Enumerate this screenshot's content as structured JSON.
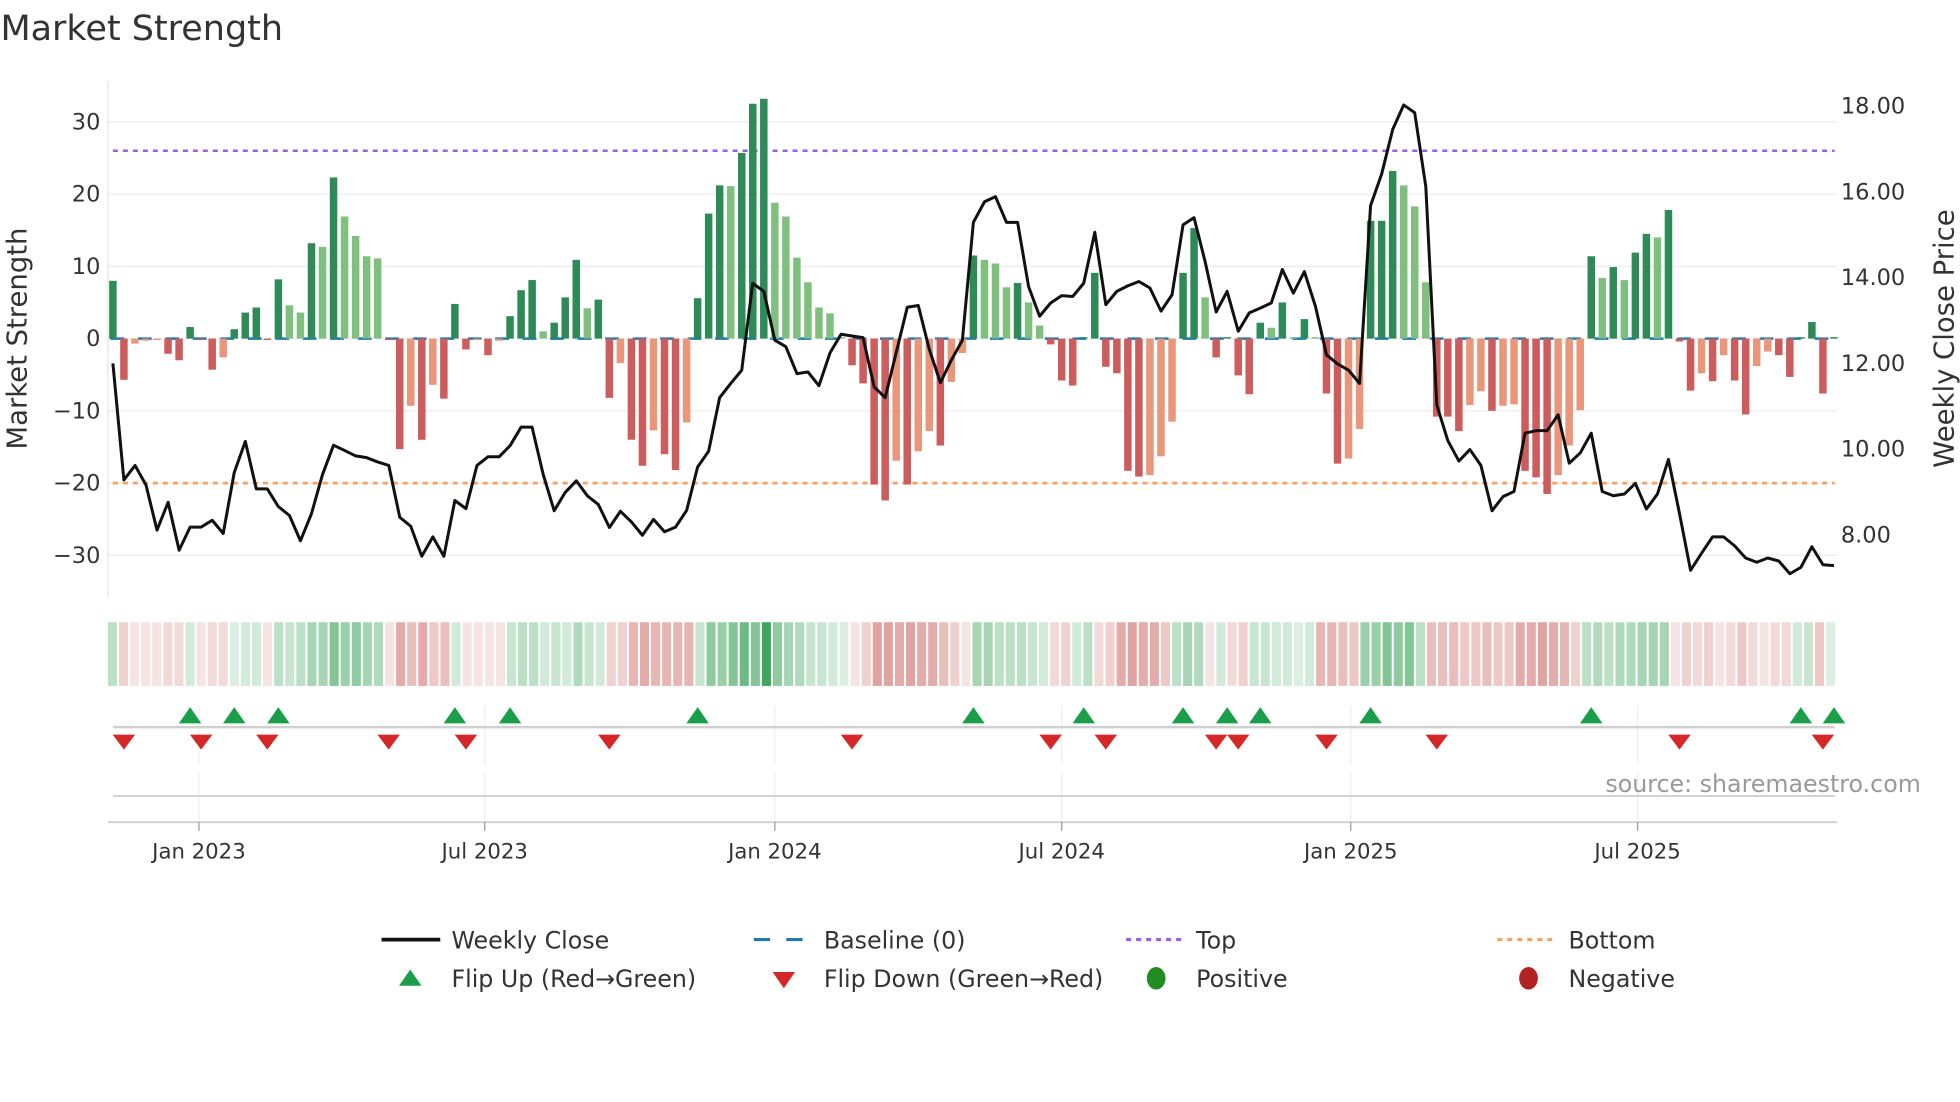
{
  "chart_data": {
    "type": "bar",
    "title": "Market Strength",
    "ylabel": "Market Strength",
    "y2label": "Weekly Close Price",
    "ylim": [
      -35,
      35
    ],
    "y2lim": [
      6.55,
      18.75
    ],
    "yticks": [
      -30,
      -20,
      -10,
      0,
      10,
      20,
      30
    ],
    "ytick_labels": [
      "−30",
      "−20",
      "−10",
      "0",
      "10",
      "20",
      "30"
    ],
    "y2ticks": [
      8,
      10,
      12,
      14,
      16,
      18
    ],
    "y2tick_labels": [
      "8.00",
      "10.00",
      "12.00",
      "14.00",
      "16.00",
      "18.00"
    ],
    "x_unit": "week index",
    "xticks": [
      {
        "week": 7.8,
        "label": "Jan 2023"
      },
      {
        "week": 33.7,
        "label": "Jul 2023"
      },
      {
        "week": 60.0,
        "label": "Jan 2024"
      },
      {
        "week": 86.0,
        "label": "Jul 2024"
      },
      {
        "week": 112.2,
        "label": "Jan 2025"
      },
      {
        "week": 138.2,
        "label": "Jul 2025"
      }
    ],
    "top_level": 26,
    "bottom_level": -20,
    "baseline": 0,
    "grid": true,
    "strength": [
      8.0,
      -5.7,
      -0.7,
      -0.3,
      -0.2,
      -2.1,
      -3.0,
      1.6,
      -0.2,
      -4.3,
      -2.6,
      1.3,
      3.6,
      4.3,
      -0.2,
      8.2,
      4.6,
      3.6,
      13.2,
      12.7,
      22.3,
      16.9,
      14.2,
      11.4,
      11.1,
      -0.2,
      -15.3,
      -9.3,
      -14.0,
      -6.4,
      -8.3,
      4.8,
      -1.5,
      -0.2,
      -2.3,
      -0.3,
      3.1,
      6.7,
      8.1,
      1.0,
      2.2,
      5.7,
      10.9,
      4.2,
      5.4,
      -8.2,
      -3.4,
      -14.0,
      -17.6,
      -12.7,
      -16.0,
      -18.2,
      -11.6,
      5.6,
      17.3,
      21.2,
      21.1,
      25.7,
      32.5,
      33.2,
      18.8,
      16.9,
      11.2,
      7.8,
      4.3,
      3.5,
      0.2,
      -3.7,
      -6.2,
      -20.2,
      -22.4,
      -16.9,
      -20.2,
      -15.6,
      -12.8,
      -14.8,
      -6.0,
      -2.0,
      11.5,
      10.9,
      10.4,
      7.1,
      7.7,
      5.0,
      1.8,
      -0.8,
      -5.8,
      -6.5,
      0.2,
      9.1,
      -3.9,
      -4.8,
      -18.3,
      -19.1,
      -18.9,
      -16.3,
      -11.5,
      9.1,
      15.3,
      5.7,
      -2.6,
      0.2,
      -5.1,
      -7.7,
      2.2,
      1.5,
      5.0,
      0.2,
      2.7,
      0.2,
      -7.6,
      -17.3,
      -16.6,
      -12.5,
      16.3,
      16.3,
      23.2,
      21.2,
      18.3,
      7.8,
      -10.8,
      -10.8,
      -12.8,
      -9.2,
      -7.3,
      -10.0,
      -9.3,
      -9.1,
      -18.3,
      -19.2,
      -21.5,
      -18.9,
      -14.8,
      -9.9,
      11.4,
      8.4,
      9.9,
      8.1,
      11.9,
      14.5,
      14.0,
      17.8,
      -0.4,
      -7.2,
      -4.8,
      -5.9,
      -2.3,
      -5.8,
      -10.5,
      -3.8,
      -1.8,
      -2.3,
      -5.3,
      0.2,
      2.3,
      -7.6,
      0.2
    ],
    "weekly_close": [
      11.97,
      9.25,
      9.59,
      9.13,
      8.08,
      8.73,
      7.61,
      8.15,
      8.15,
      8.31,
      8.0,
      9.42,
      10.15,
      9.04,
      9.04,
      8.63,
      8.42,
      7.83,
      8.46,
      9.38,
      10.06,
      9.94,
      9.81,
      9.77,
      9.67,
      9.59,
      8.38,
      8.17,
      7.47,
      7.92,
      7.47,
      8.77,
      8.58,
      9.59,
      9.79,
      9.79,
      10.05,
      10.48,
      10.48,
      9.38,
      8.53,
      8.96,
      9.23,
      8.88,
      8.68,
      8.14,
      8.52,
      8.27,
      7.96,
      8.33,
      8.04,
      8.15,
      8.54,
      9.55,
      9.92,
      11.17,
      11.5,
      11.81,
      13.84,
      13.65,
      12.51,
      12.36,
      11.73,
      11.77,
      11.45,
      12.22,
      12.65,
      12.61,
      12.57,
      11.42,
      11.17,
      12.22,
      13.28,
      13.32,
      12.3,
      11.52,
      12.05,
      12.51,
      15.26,
      15.74,
      15.86,
      15.26,
      15.26,
      13.76,
      13.07,
      13.38,
      13.55,
      13.53,
      13.84,
      15.03,
      13.34,
      13.65,
      13.78,
      13.88,
      13.73,
      13.19,
      13.57,
      15.2,
      15.37,
      14.34,
      13.17,
      13.65,
      12.72,
      13.15,
      13.26,
      13.38,
      14.16,
      13.61,
      14.11,
      13.3,
      12.17,
      11.96,
      11.81,
      11.5,
      15.65,
      16.39,
      17.43,
      18.0,
      17.82,
      16.1,
      11.0,
      10.17,
      9.69,
      9.96,
      9.59,
      8.53,
      8.86,
      8.98,
      10.34,
      10.4,
      10.4,
      10.77,
      9.64,
      9.88,
      10.34,
      8.98,
      8.88,
      8.92,
      9.17,
      8.57,
      8.92,
      9.73,
      8.46,
      7.14,
      7.54,
      7.92,
      7.92,
      7.71,
      7.43,
      7.33,
      7.43,
      7.36,
      7.06,
      7.21,
      7.69,
      7.27,
      7.25
    ],
    "heat_strip": [
      0.3,
      -0.25,
      -0.15,
      -0.15,
      -0.15,
      -0.2,
      -0.2,
      0.2,
      -0.15,
      -0.2,
      -0.2,
      0.15,
      0.2,
      0.2,
      -0.15,
      0.3,
      0.25,
      0.3,
      0.4,
      0.4,
      0.55,
      0.45,
      0.5,
      0.4,
      0.35,
      -0.15,
      -0.45,
      -0.35,
      -0.45,
      -0.3,
      -0.35,
      0.2,
      -0.15,
      -0.15,
      -0.15,
      -0.15,
      0.25,
      0.3,
      0.3,
      0.2,
      0.25,
      0.2,
      0.35,
      0.25,
      0.2,
      -0.25,
      -0.25,
      -0.4,
      -0.45,
      -0.4,
      -0.4,
      -0.4,
      -0.4,
      0.25,
      0.5,
      0.45,
      0.55,
      0.65,
      0.55,
      0.85,
      0.5,
      0.4,
      0.35,
      0.25,
      0.25,
      0.2,
      0.15,
      -0.15,
      -0.25,
      -0.5,
      -0.5,
      -0.45,
      -0.5,
      -0.45,
      -0.45,
      -0.35,
      -0.25,
      -0.15,
      0.4,
      0.4,
      0.3,
      0.3,
      0.3,
      0.25,
      0.2,
      -0.2,
      -0.25,
      0.2,
      0.3,
      -0.2,
      -0.25,
      -0.45,
      -0.5,
      -0.45,
      -0.45,
      -0.3,
      0.3,
      0.4,
      0.35,
      -0.15,
      0.2,
      -0.2,
      -0.25,
      0.25,
      0.25,
      0.2,
      0.2,
      0.15,
      0.2,
      -0.4,
      -0.4,
      -0.35,
      -0.3,
      0.45,
      0.45,
      0.55,
      0.5,
      0.55,
      0.3,
      -0.35,
      -0.35,
      -0.35,
      -0.3,
      -0.3,
      -0.35,
      -0.3,
      -0.3,
      -0.45,
      -0.45,
      -0.5,
      -0.45,
      -0.4,
      -0.25,
      0.3,
      0.35,
      0.3,
      0.35,
      0.35,
      0.4,
      0.4,
      0.4,
      -0.15,
      -0.25,
      -0.2,
      -0.25,
      -0.15,
      -0.2,
      -0.3,
      -0.2,
      -0.15,
      -0.2,
      -0.2,
      0.2,
      0.25,
      -0.3,
      0.15
    ],
    "flip_up_weeks": [
      7,
      11,
      15,
      31,
      36,
      53,
      78,
      88,
      97,
      101,
      104,
      114,
      134,
      153,
      156
    ],
    "flip_down_weeks": [
      1,
      8,
      14,
      25,
      32,
      45,
      67,
      85,
      90,
      100,
      102,
      110,
      120,
      142,
      155
    ],
    "legend": {
      "placement": "bottom",
      "items": [
        {
          "label": "Weekly Close"
        },
        {
          "label": "Baseline (0)"
        },
        {
          "label": "Top"
        },
        {
          "label": "Bottom"
        },
        {
          "label": "Flip Up (Red→Green)"
        },
        {
          "label": "Flip Down (Green→Red)"
        },
        {
          "label": "Positive"
        },
        {
          "label": "Negative"
        }
      ]
    },
    "source": "source: sharemaestro.com"
  },
  "colors": {
    "bar_pos_strong": "#2e8b57",
    "bar_pos_weak": "#80c07e",
    "bar_neg_strong": "#cd5c5c",
    "bar_neg_weak": "#e9967a",
    "line": "#111111",
    "baseline": "#1f77b4",
    "top": "#9b5de5",
    "bottom": "#f4a261",
    "flip_up": "#1a9e4a",
    "flip_down": "#d62728",
    "positive": "#228b22",
    "negative": "#b22222"
  }
}
